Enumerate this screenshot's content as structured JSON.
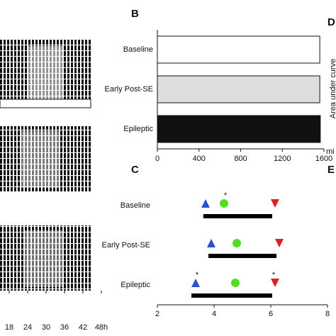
{
  "chart_data": [
    {
      "type": "actogram",
      "xlim": [
        15,
        48
      ],
      "xticks": [
        18,
        24,
        30,
        36,
        42,
        {
          "value": 48,
          "label": "48h"
        }
      ]
    },
    {
      "type": "bar",
      "panel": "B",
      "categories": [
        "Baseline",
        "Early Post-SE",
        "Epileptic"
      ],
      "values": [
        1560,
        1560,
        1565
      ],
      "colors": [
        "#ffffff",
        "#dddddd",
        "#111111"
      ],
      "xlim": [
        0,
        1600
      ],
      "xticks": [
        0,
        400,
        800,
        1200,
        1600
      ],
      "xlabel": "mi"
    },
    {
      "type": "dot_range",
      "panel": "C",
      "categories": [
        "Baseline",
        "Early Post-SE",
        "Epileptic"
      ],
      "series": [
        {
          "color": "#2a4fd0",
          "marker": "triangle",
          "values": [
            3.7,
            3.9,
            3.35
          ]
        },
        {
          "color": "#55dd22",
          "marker": "circle",
          "values": [
            4.35,
            4.8,
            4.75
          ]
        },
        {
          "color": "#e02020",
          "marker": "triangle-down",
          "values": [
            6.15,
            6.3,
            6.15
          ]
        }
      ],
      "range": {
        "color": "#000000",
        "start": [
          3.62,
          3.8,
          3.2
        ],
        "end": [
          6.05,
          6.2,
          6.05
        ]
      },
      "annotations": [
        {
          "text": "*",
          "x": 4.35,
          "category": 0
        },
        {
          "text": "*",
          "x": 3.35,
          "category": 2
        },
        {
          "text": "*",
          "x": 6.05,
          "category": 2
        }
      ],
      "xlim": [
        2,
        8
      ],
      "xticks": [
        2,
        4,
        6,
        8
      ]
    },
    {
      "type": "partial",
      "panel": "D",
      "ylabel": "Area under curve"
    },
    {
      "type": "partial",
      "panel": "E"
    }
  ]
}
